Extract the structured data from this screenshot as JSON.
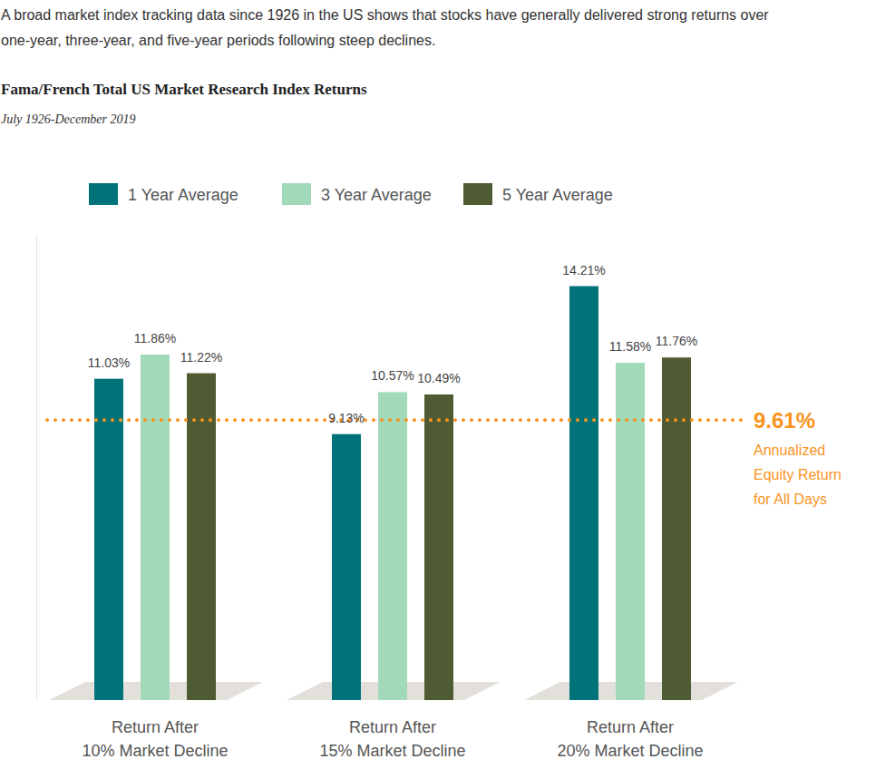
{
  "chart_data": {
    "type": "bar",
    "caption": [
      "A broad market index tracking data since 1926 in the US shows that stocks have generally delivered strong returns over",
      "one-year, three-year, and five-year periods following steep declines."
    ],
    "title": "Fama/French Total US Market Research Index Returns",
    "subtitle": "July 1926-December 2019",
    "categories": [
      "Return After\n10% Market Decline",
      "Return After\n15% Market Decline",
      "Return After\n20% Market Decline"
    ],
    "series": [
      {
        "name": "1 Year Average",
        "color": "#00737a",
        "values": [
          11.03,
          9.13,
          14.21
        ],
        "value_labels": [
          "11.03%",
          "9.13%",
          "14.21%"
        ]
      },
      {
        "name": "3 Year Average",
        "color": "#a2d9b9",
        "values": [
          11.86,
          10.57,
          11.58
        ],
        "value_labels": [
          "11.86%",
          "10.57%",
          "11.58%"
        ]
      },
      {
        "name": "5 Year Average",
        "color": "#4f5b32",
        "values": [
          11.22,
          10.49,
          11.76
        ],
        "value_labels": [
          "11.22%",
          "10.49%",
          "11.76%"
        ]
      }
    ],
    "ylim": [
      0,
      16
    ],
    "tick_labels": "x",
    "data_labels": true,
    "legend": "top",
    "grid": false,
    "reference_line": {
      "value": 9.61,
      "label": "9.61%",
      "text": [
        "Annualized",
        "Equity Return",
        "for All Days"
      ],
      "color": "#f7941d",
      "line_style": "dotted"
    }
  }
}
